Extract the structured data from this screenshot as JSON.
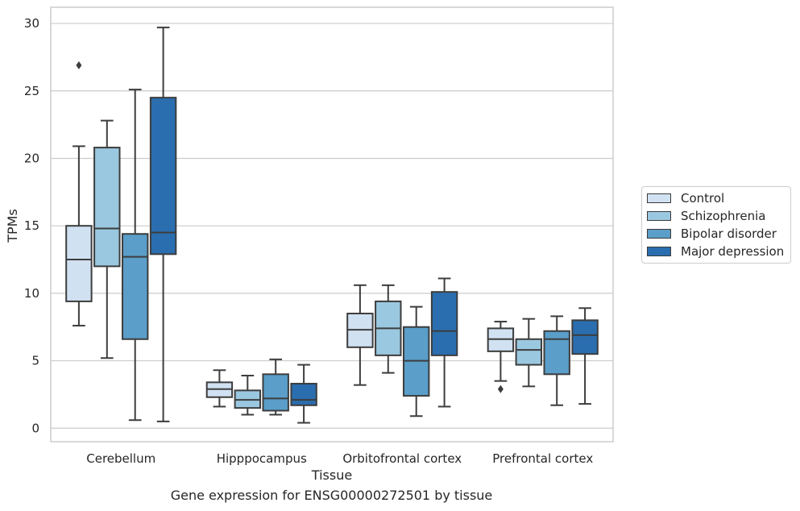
{
  "caption": "Gene expression for ENSG00000272501 by tissue",
  "legend": {
    "items": [
      {
        "label": "Control",
        "color": "#d0e1f2"
      },
      {
        "label": "Schizophrenia",
        "color": "#9ac8e0"
      },
      {
        "label": "Bipolar disorder",
        "color": "#5a9ec9"
      },
      {
        "label": "Major depression",
        "color": "#2a6eaf"
      }
    ]
  },
  "chart_data": {
    "type": "box",
    "xlabel": "Tissue",
    "ylabel": "TPMs",
    "ylim": [
      -1,
      31.2
    ],
    "yticks": [
      0,
      5,
      10,
      15,
      20,
      25,
      30
    ],
    "grid": true,
    "legend_position": "right",
    "categories": [
      "Cerebellum",
      "Hipppocampus",
      "Orbitofrontal cortex",
      "Prefrontal cortex"
    ],
    "series": [
      {
        "name": "Control",
        "color": "#d0e1f2",
        "boxes": [
          {
            "whislo": 7.6,
            "q1": 9.4,
            "med": 12.5,
            "q3": 15.0,
            "whishi": 20.9,
            "fliers": [
              26.9
            ]
          },
          {
            "whislo": 1.6,
            "q1": 2.3,
            "med": 2.9,
            "q3": 3.4,
            "whishi": 4.3,
            "fliers": []
          },
          {
            "whislo": 3.2,
            "q1": 6.0,
            "med": 7.3,
            "q3": 8.5,
            "whishi": 10.6,
            "fliers": []
          },
          {
            "whislo": 3.5,
            "q1": 5.7,
            "med": 6.6,
            "q3": 7.4,
            "whishi": 7.9,
            "fliers": [
              2.9
            ]
          }
        ]
      },
      {
        "name": "Schizophrenia",
        "color": "#9ac8e0",
        "boxes": [
          {
            "whislo": 5.2,
            "q1": 12.0,
            "med": 14.8,
            "q3": 20.8,
            "whishi": 22.8,
            "fliers": []
          },
          {
            "whislo": 1.0,
            "q1": 1.5,
            "med": 2.1,
            "q3": 2.8,
            "whishi": 3.9,
            "fliers": []
          },
          {
            "whislo": 4.1,
            "q1": 5.4,
            "med": 7.4,
            "q3": 9.4,
            "whishi": 10.6,
            "fliers": []
          },
          {
            "whislo": 3.1,
            "q1": 4.7,
            "med": 5.8,
            "q3": 6.6,
            "whishi": 8.1,
            "fliers": []
          }
        ]
      },
      {
        "name": "Bipolar disorder",
        "color": "#5a9ec9",
        "boxes": [
          {
            "whislo": 0.6,
            "q1": 6.6,
            "med": 12.7,
            "q3": 14.4,
            "whishi": 25.1,
            "fliers": []
          },
          {
            "whislo": 1.0,
            "q1": 1.3,
            "med": 2.2,
            "q3": 4.0,
            "whishi": 5.1,
            "fliers": []
          },
          {
            "whislo": 0.9,
            "q1": 2.4,
            "med": 5.0,
            "q3": 7.5,
            "whishi": 9.0,
            "fliers": []
          },
          {
            "whislo": 1.7,
            "q1": 4.0,
            "med": 6.6,
            "q3": 7.2,
            "whishi": 8.3,
            "fliers": []
          }
        ]
      },
      {
        "name": "Major depression",
        "color": "#2a6eaf",
        "boxes": [
          {
            "whislo": 0.5,
            "q1": 12.9,
            "med": 14.5,
            "q3": 24.5,
            "whishi": 29.7,
            "fliers": []
          },
          {
            "whislo": 0.4,
            "q1": 1.7,
            "med": 2.1,
            "q3": 3.3,
            "whishi": 4.7,
            "fliers": []
          },
          {
            "whislo": 1.6,
            "q1": 5.4,
            "med": 7.2,
            "q3": 10.1,
            "whishi": 11.1,
            "fliers": []
          },
          {
            "whislo": 1.8,
            "q1": 5.5,
            "med": 6.9,
            "q3": 8.0,
            "whishi": 8.9,
            "fliers": []
          }
        ]
      }
    ]
  }
}
